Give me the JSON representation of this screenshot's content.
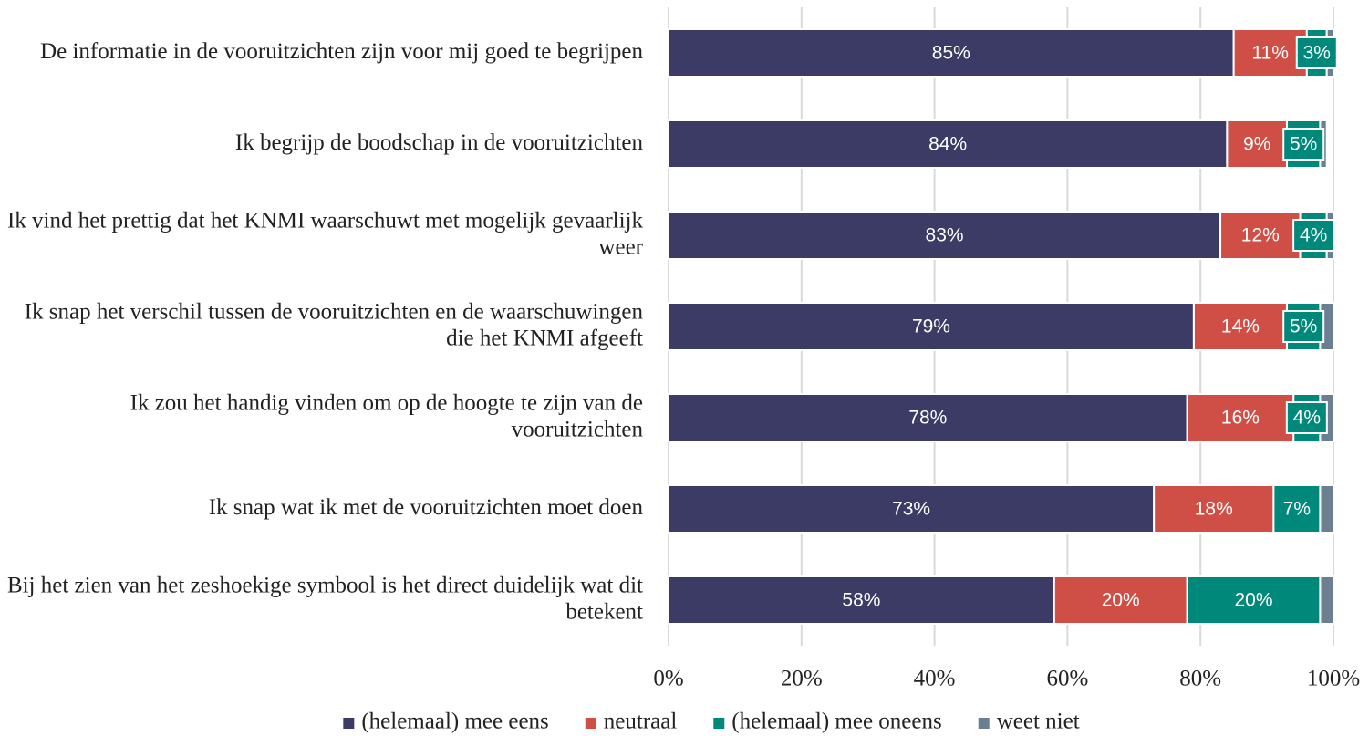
{
  "chart_data": {
    "type": "stacked-bar-horizontal",
    "categories": [
      "De informatie in de vooruitzichten zijn voor mij goed te begrijpen",
      "Ik begrijp de boodschap in de vooruitzichten",
      "Ik vind het prettig dat het KNMI waarschuwt met mogelijk gevaarlijk weer",
      "Ik snap het verschil tussen de vooruitzichten en de waarschuwingen die het KNMI afgeeft",
      "Ik zou het handig vinden om op de hoogte te zijn van de vooruitzichten",
      "Ik snap wat ik met de vooruitzichten moet doen",
      "Bij het zien van het zeshoekige symbool is het direct duidelijk wat dit betekent"
    ],
    "series": [
      {
        "name": "(helemaal) mee eens",
        "color": "#3b3b65",
        "values": [
          85,
          84,
          83,
          79,
          78,
          73,
          58
        ],
        "value_labels": [
          "85%",
          "84%",
          "83%",
          "79%",
          "78%",
          "73%",
          "58%"
        ]
      },
      {
        "name": "neutraal",
        "color": "#cf4f47",
        "values": [
          11,
          9,
          12,
          14,
          16,
          18,
          20
        ],
        "value_labels": [
          "11%",
          "9%",
          "12%",
          "14%",
          "16%",
          "18%",
          "20%"
        ]
      },
      {
        "name": "(helemaal) mee oneens",
        "color": "#00897b",
        "values": [
          3,
          5,
          4,
          5,
          4,
          7,
          20
        ],
        "value_labels": [
          "3%",
          "5%",
          "4%",
          "5%",
          "4%",
          "7%",
          "20%"
        ]
      },
      {
        "name": "weet niet",
        "color": "#6b7f93",
        "values": [
          1,
          1,
          1,
          2,
          2,
          2,
          2
        ]
      }
    ],
    "xlim": [
      0,
      100
    ],
    "xticks": [
      {
        "value": 0,
        "label": "0%"
      },
      {
        "value": 20,
        "label": "20%"
      },
      {
        "value": 40,
        "label": "40%"
      },
      {
        "value": 60,
        "label": "60%"
      },
      {
        "value": 80,
        "label": "80%"
      },
      {
        "value": 100,
        "label": "100%"
      }
    ],
    "grid": true,
    "legend": "bottom"
  }
}
